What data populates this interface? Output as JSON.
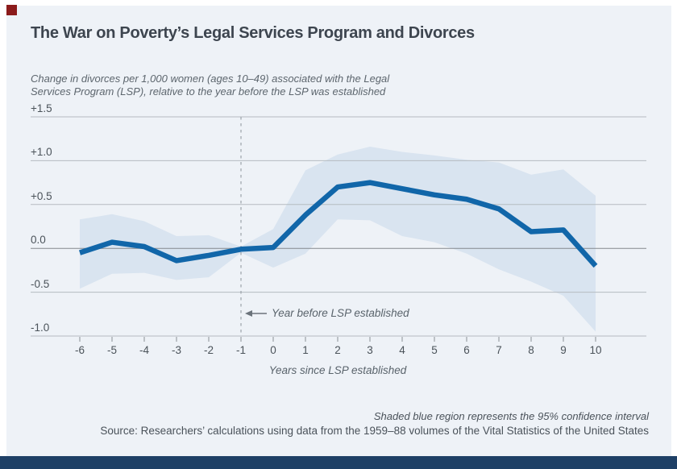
{
  "header": {
    "title": "The War on Poverty’s Legal Services Program and Divorces"
  },
  "subtitle": {
    "line1": "Change in divorces per 1,000 women (ages 10–49) associated with the Legal",
    "line2": "Services Program (LSP), relative to the year before the LSP was established"
  },
  "chart_data": {
    "type": "line",
    "x": [
      -6,
      -5,
      -4,
      -3,
      -2,
      -1,
      0,
      1,
      2,
      3,
      4,
      5,
      6,
      7,
      8,
      9,
      10
    ],
    "series": [
      {
        "name": "Change in divorces per 1,000 women",
        "values": [
          -0.05,
          0.07,
          0.02,
          -0.14,
          -0.08,
          -0.01,
          0.01,
          0.38,
          0.7,
          0.75,
          0.68,
          0.61,
          0.56,
          0.45,
          0.19,
          0.21,
          -0.2
        ]
      }
    ],
    "ci_upper": [
      0.33,
      0.39,
      0.31,
      0.14,
      0.15,
      0.02,
      0.22,
      0.89,
      1.07,
      1.16,
      1.1,
      1.06,
      1.01,
      0.98,
      0.84,
      0.9,
      0.6
    ],
    "ci_lower": [
      -0.46,
      -0.29,
      -0.28,
      -0.36,
      -0.33,
      -0.05,
      -0.22,
      -0.06,
      0.33,
      0.32,
      0.14,
      0.07,
      -0.06,
      -0.24,
      -0.38,
      -0.54,
      -0.95
    ],
    "ylim": [
      -1.0,
      1.5
    ],
    "y_ticks": [
      1.5,
      1.0,
      0.5,
      0.0,
      -0.5,
      -1.0
    ],
    "y_tick_labels": [
      "+1.5",
      "+1.0",
      "+0.5",
      "0.0",
      "-0.5",
      "-1.0"
    ],
    "x_tick_labels": [
      "-6",
      "-5",
      "-4",
      "-3",
      "-2",
      "-1",
      "0",
      "1",
      "2",
      "3",
      "4",
      "5",
      "6",
      "7",
      "8",
      "9",
      "10"
    ],
    "xlabel": "Years since LSP established",
    "reference_line_x": -1,
    "annotation": "Year before LSP established",
    "grid": "horizontal only",
    "legend": "none",
    "line_color": "#1166a9",
    "band_color": "#d9e4f0",
    "grid_color": "#b5bbc1",
    "zero_line_color": "#83888e",
    "dashed_line_color": "#9ba2a9",
    "tick_color": "#8a9096",
    "arrow_color": "#6b737b"
  },
  "footer": {
    "note": "Shaded blue region represents the 95% confidence interval",
    "source": "Source: Researchers’ calculations using data from the 1959–88 volumes of the Vital Statistics of the United States"
  },
  "branding": {
    "red_square_color": "#8b1b1b",
    "bottom_bar_color": "#1e4066"
  }
}
